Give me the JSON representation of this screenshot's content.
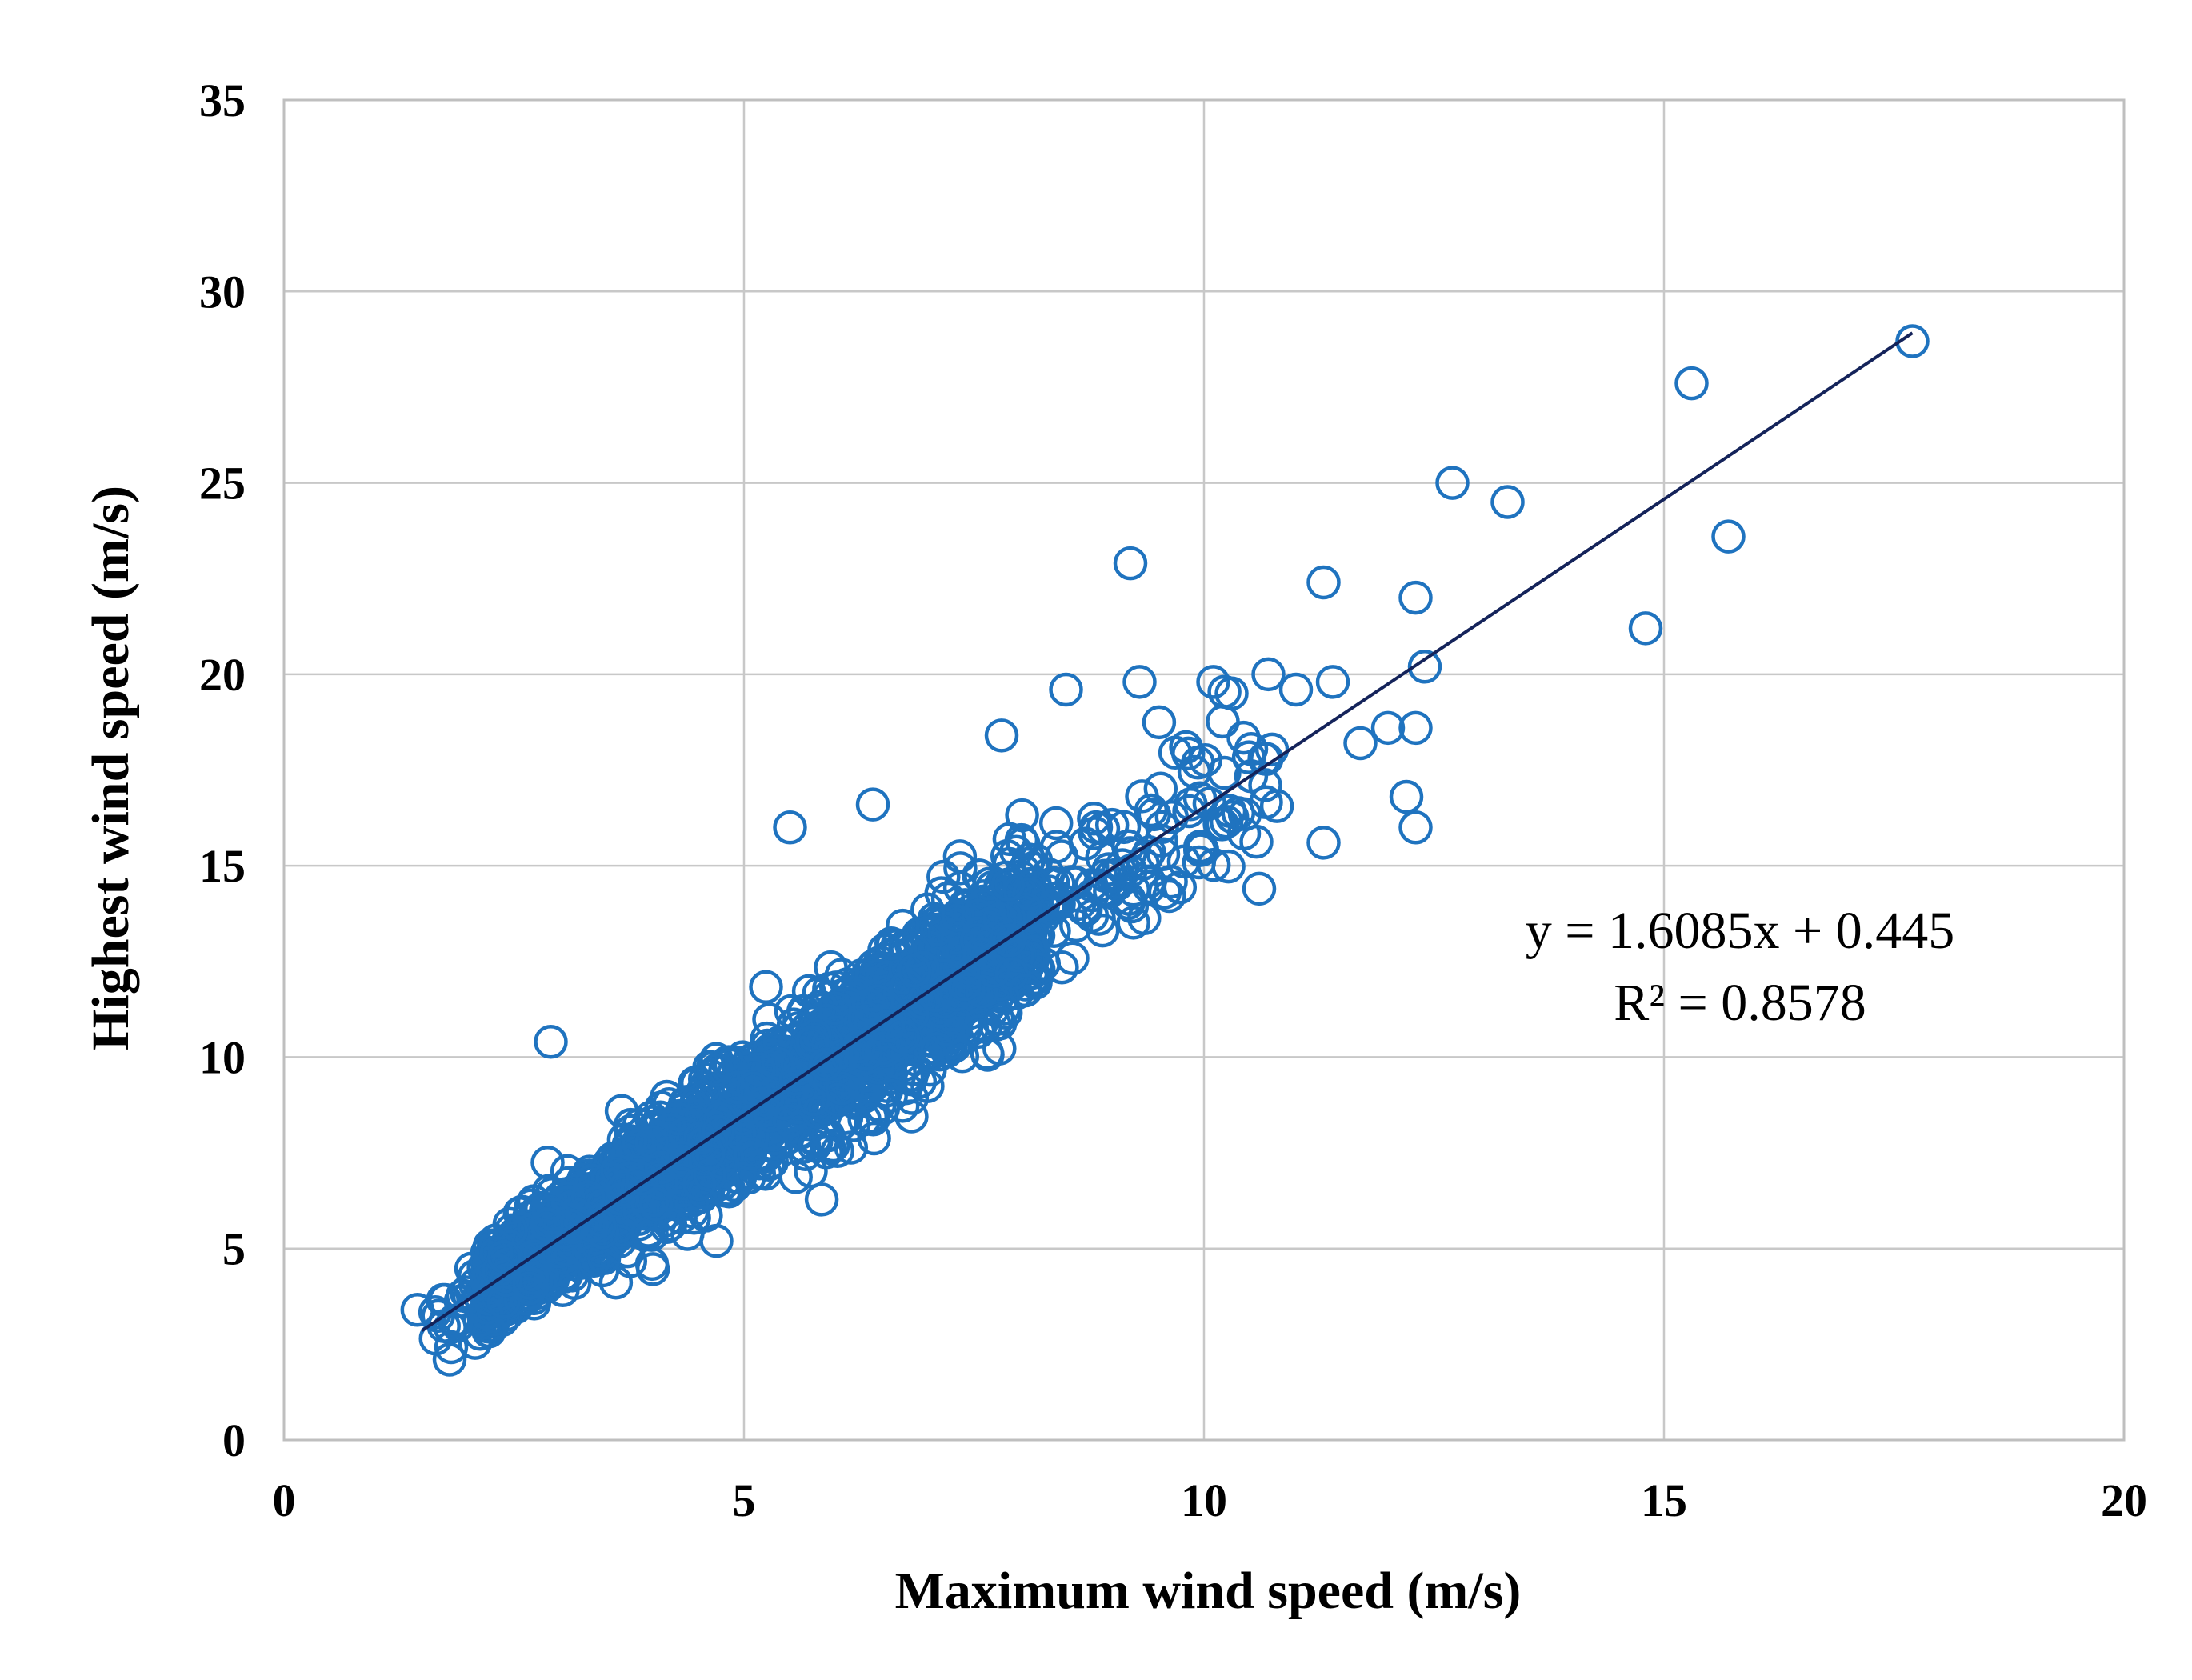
{
  "chart_data": {
    "type": "scatter",
    "title": "",
    "xlabel": "Maximum wind speed (m/s)",
    "ylabel": "Highest  wind speed (m/s)",
    "xlim": [
      0,
      20
    ],
    "ylim": [
      0,
      35
    ],
    "x_ticks": [
      "0",
      "5",
      "10",
      "15",
      "20"
    ],
    "y_ticks": [
      "0",
      "5",
      "10",
      "15",
      "20",
      "25",
      "30",
      "35"
    ],
    "grid": true,
    "legend": "none",
    "marker": "open-circle",
    "marker_color": "#1f73bf",
    "trendline": {
      "type": "linear",
      "slope": 1.6085,
      "intercept": 0.445,
      "x_range": [
        1.5,
        17.7
      ],
      "color": "#14235a"
    },
    "annotations": {
      "equation": "y = 1.6085x + 0.445",
      "r_squared": "R² = 0.8578"
    },
    "outlier_points": [
      [
        17.7,
        28.7
      ],
      [
        15.3,
        27.6
      ],
      [
        15.7,
        23.6
      ],
      [
        14.8,
        21.2
      ],
      [
        12.7,
        25.0
      ],
      [
        13.3,
        24.5
      ],
      [
        12.3,
        22.0
      ],
      [
        12.4,
        20.2
      ],
      [
        11.3,
        22.4
      ],
      [
        9.2,
        22.9
      ],
      [
        12.3,
        16.0
      ],
      [
        12.2,
        16.8
      ],
      [
        12.0,
        18.6
      ],
      [
        12.3,
        18.6
      ],
      [
        11.7,
        18.2
      ],
      [
        11.4,
        19.8
      ],
      [
        10.1,
        19.8
      ],
      [
        9.3,
        19.8
      ],
      [
        8.5,
        19.6
      ],
      [
        7.8,
        18.4
      ],
      [
        10.3,
        19.5
      ],
      [
        10.7,
        20.0
      ],
      [
        11.0,
        19.6
      ],
      [
        2.9,
        10.4
      ],
      [
        5.5,
        16.0
      ],
      [
        6.4,
        16.6
      ],
      [
        11.3,
        15.6
      ],
      [
        10.6,
        14.4
      ],
      [
        4.7,
        5.2
      ],
      [
        4.0,
        4.6
      ],
      [
        1.8,
        2.1
      ],
      [
        1.45,
        3.4
      ]
    ],
    "cloud_band": {
      "x_range": [
        1.6,
        10.8
      ],
      "slope": 1.6085,
      "intercept": 0.445,
      "residual_spread": 1.4,
      "point_count": 2600
    }
  }
}
